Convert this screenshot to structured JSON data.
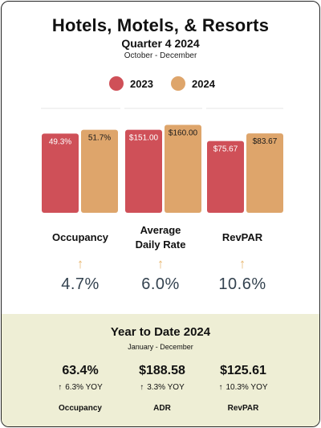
{
  "header": {
    "title": "Hotels, Motels, & Resorts",
    "subtitle": "Quarter 4 2024",
    "date_range": "October - December"
  },
  "colors": {
    "series_2023": "#cf5058",
    "series_2024": "#dea56b",
    "arrow": "#e9b872",
    "ytd_background": "#eeeed5"
  },
  "chart_data": {
    "type": "bar",
    "categories": [
      "Occupancy",
      "Average Daily Rate",
      "RevPAR"
    ],
    "series": [
      {
        "name": "2023",
        "values": [
          49.3,
          151.0,
          75.67
        ],
        "labels": [
          "49.3%",
          "$151.00",
          "$75.67"
        ]
      },
      {
        "name": "2024",
        "values": [
          51.7,
          160.0,
          83.67
        ],
        "labels": [
          "51.7%",
          "$160.00",
          "$83.67"
        ]
      }
    ],
    "ylim_per_category": [
      [
        0,
        65
      ],
      [
        0,
        190
      ],
      [
        0,
        110
      ]
    ],
    "legend": "top-center",
    "grid": false
  },
  "metrics": [
    {
      "label_lines": [
        "Occupancy"
      ],
      "change": "4.7%"
    },
    {
      "label_lines": [
        "Average",
        "Daily Rate"
      ],
      "change": "6.0%"
    },
    {
      "label_lines": [
        "RevPAR"
      ],
      "change": "10.6%"
    }
  ],
  "arrow_icon": "↑",
  "ytd": {
    "title": "Year to Date 2024",
    "date_range": "January - December",
    "items": [
      {
        "value": "63.4%",
        "yoy": "6.3% YOY",
        "label": "Occupancy"
      },
      {
        "value": "$188.58",
        "yoy": "3.3% YOY",
        "label": "ADR"
      },
      {
        "value": "$125.61",
        "yoy": "10.3% YOY",
        "label": "RevPAR"
      }
    ]
  }
}
